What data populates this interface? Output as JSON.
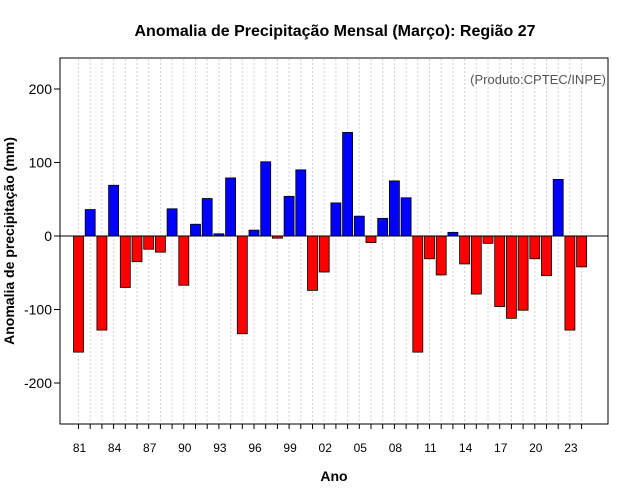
{
  "chart_data": {
    "type": "bar",
    "title": "Anomalia de Precipitação Mensal (Março): Região 27",
    "xlabel": "Ano",
    "ylabel": "Anomalia de precipitação (mm)",
    "credit": "(Produto:CPTEC/INPE)",
    "ylim": [
      -260,
      240
    ],
    "yticks": [
      -200,
      -100,
      0,
      100,
      200
    ],
    "x_tick_labels": [
      "81",
      "84",
      "87",
      "90",
      "93",
      "96",
      "99",
      "02",
      "05",
      "08",
      "11",
      "14",
      "17",
      "20",
      "23"
    ],
    "years": [
      1981,
      1982,
      1983,
      1984,
      1985,
      1986,
      1987,
      1988,
      1989,
      1990,
      1991,
      1992,
      1993,
      1994,
      1995,
      1996,
      1997,
      1998,
      1999,
      2000,
      2001,
      2002,
      2003,
      2004,
      2005,
      2006,
      2007,
      2008,
      2009,
      2010,
      2011,
      2012,
      2013,
      2014,
      2015,
      2016,
      2017,
      2018,
      2019,
      2020,
      2021,
      2022,
      2023,
      2024
    ],
    "values": [
      -158,
      36,
      -128,
      69,
      -70,
      -35,
      -18,
      -22,
      37,
      -67,
      16,
      51,
      3,
      79,
      -133,
      8,
      101,
      -3,
      54,
      90,
      -74,
      -49,
      45,
      141,
      27,
      -9,
      24,
      75,
      52,
      -158,
      -31,
      -53,
      5,
      -38,
      -79,
      -10,
      -96,
      -112,
      -101,
      -31,
      -54,
      77,
      -128,
      -42
    ],
    "colors": {
      "positive": "#0000ff",
      "negative": "#ff0000",
      "grid": "#d3d3d3",
      "frame": "#000000",
      "credit": "#555555"
    },
    "grid": true
  }
}
